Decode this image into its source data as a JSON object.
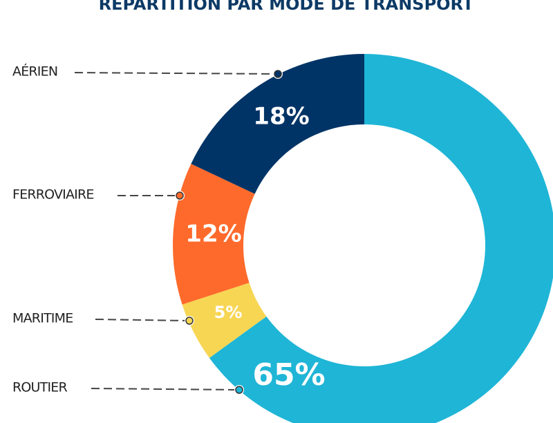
{
  "chart_data": {
    "type": "donut",
    "title": "RÉPARTITION PAR MODE DE TRANSPORT",
    "categories": [
      "ROUTIER",
      "MARITIME",
      "FERROVIAIRE",
      "AÉRIEN"
    ],
    "values": [
      65,
      5,
      12,
      18
    ],
    "value_labels": [
      "65%",
      "5%",
      "12%",
      "18%"
    ],
    "colors": [
      "#1fb5d6",
      "#f7d654",
      "#fe6a2b",
      "#003466"
    ]
  }
}
